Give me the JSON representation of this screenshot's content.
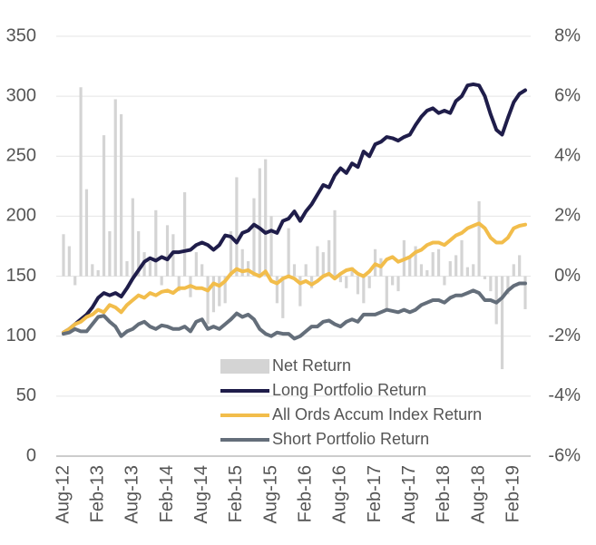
{
  "chart_data": {
    "type": "combo",
    "categories": [
      "Aug-12",
      null,
      null,
      null,
      null,
      null,
      "Feb-13",
      null,
      null,
      null,
      null,
      null,
      "Aug-13",
      null,
      null,
      null,
      null,
      null,
      "Feb-14",
      null,
      null,
      null,
      null,
      null,
      "Aug-14",
      null,
      null,
      null,
      null,
      null,
      "Feb-15",
      null,
      null,
      null,
      null,
      null,
      "Aug-15",
      null,
      null,
      null,
      null,
      null,
      "Feb-16",
      null,
      null,
      null,
      null,
      null,
      "Aug-16",
      null,
      null,
      null,
      null,
      null,
      "Feb-17",
      null,
      null,
      null,
      null,
      null,
      "Aug-17",
      null,
      null,
      null,
      null,
      null,
      "Feb-18",
      null,
      null,
      null,
      null,
      null,
      "Aug-18",
      null,
      null,
      null,
      null,
      null,
      "Feb-19",
      null,
      null
    ],
    "series": [
      {
        "name": "Net Return",
        "type": "bar",
        "axis": "y2",
        "color": "#d4d4d4",
        "values": [
          1.4,
          1.0,
          -0.3,
          6.3,
          2.9,
          0.4,
          0.2,
          4.7,
          1.5,
          5.9,
          5.4,
          0.5,
          2.6,
          1.5,
          0.8,
          0.5,
          2.2,
          -0.3,
          1.7,
          1.4,
          -0.5,
          2.8,
          -0.7,
          0.8,
          0.4,
          -1.6,
          -1.2,
          -1.0,
          -0.9,
          1.5,
          3.3,
          0.9,
          0.5,
          2.6,
          3.6,
          3.9,
          2.0,
          -0.9,
          -1.4,
          1.6,
          0.4,
          -1.0,
          0.4,
          -0.4,
          1.0,
          0.8,
          1.2,
          2.2,
          -0.2,
          -0.4,
          0.3,
          -0.6,
          -0.9,
          -0.4,
          0.9,
          0.6,
          -1.1,
          -0.3,
          -0.5,
          1.2,
          0.6,
          1.0,
          0.4,
          0.2,
          0.8,
          0.9,
          -0.3,
          0.5,
          0.7,
          1.2,
          0.3,
          0.4,
          2.5,
          -0.1,
          -0.5,
          -1.6,
          -3.1,
          -0.6,
          0.4,
          0.7,
          -1.1
        ]
      },
      {
        "name": "Long Portfolio Return",
        "type": "line",
        "color": "#1f1d4a",
        "values": [
          103,
          106,
          110,
          114,
          118,
          124,
          132,
          136,
          134,
          136,
          133,
          140,
          148,
          155,
          162,
          165,
          163,
          166,
          164,
          170,
          170,
          171,
          172,
          176,
          178,
          176,
          172,
          176,
          184,
          183,
          178,
          186,
          188,
          193,
          190,
          186,
          188,
          186,
          196,
          198,
          204,
          196,
          204,
          210,
          218,
          226,
          224,
          234,
          240,
          236,
          244,
          241,
          254,
          250,
          260,
          262,
          266,
          265,
          263,
          266,
          268,
          276,
          283,
          288,
          290,
          286,
          288,
          286,
          296,
          300,
          309,
          310,
          309,
          300,
          285,
          272,
          268,
          282,
          295,
          302,
          305
        ]
      },
      {
        "name": "All Ords Accum Index Return",
        "type": "line",
        "color": "#f2bd4b",
        "values": [
          103,
          106,
          110,
          112,
          116,
          118,
          122,
          120,
          126,
          124,
          120,
          126,
          130,
          134,
          132,
          136,
          134,
          137,
          138,
          136,
          140,
          140,
          142,
          140,
          140,
          138,
          144,
          142,
          146,
          152,
          156,
          154,
          155,
          152,
          150,
          154,
          146,
          144,
          148,
          150,
          148,
          144,
          146,
          143,
          146,
          150,
          152,
          148,
          152,
          155,
          156,
          152,
          150,
          154,
          160,
          158,
          164,
          166,
          162,
          164,
          166,
          170,
          172,
          176,
          178,
          178,
          176,
          180,
          184,
          186,
          190,
          192,
          194,
          190,
          182,
          178,
          178,
          182,
          190,
          192,
          193
        ]
      },
      {
        "name": "Short Portfolio  Return",
        "type": "line",
        "color": "#646e7a",
        "values": [
          102,
          103,
          106,
          104,
          104,
          110,
          116,
          117,
          112,
          108,
          100,
          104,
          106,
          110,
          112,
          108,
          106,
          109,
          108,
          106,
          106,
          108,
          104,
          112,
          114,
          106,
          108,
          106,
          110,
          114,
          119,
          116,
          118,
          114,
          106,
          102,
          100,
          103,
          102,
          102,
          98,
          100,
          104,
          108,
          108,
          112,
          113,
          110,
          108,
          112,
          114,
          112,
          118,
          118,
          118,
          120,
          122,
          121,
          120,
          122,
          120,
          122,
          126,
          128,
          130,
          130,
          128,
          132,
          134,
          134,
          136,
          138,
          136,
          130,
          130,
          128,
          132,
          138,
          142,
          144,
          144
        ]
      }
    ],
    "ylim": [
      0,
      350
    ],
    "yticks": [
      0,
      50,
      100,
      150,
      200,
      250,
      300,
      350
    ],
    "y2lim": [
      -6,
      8
    ],
    "y2ticks": [
      {
        "value": -6,
        "label": "-6%"
      },
      {
        "value": -4,
        "label": "-4%"
      },
      {
        "value": -2,
        "label": "-2%"
      },
      {
        "value": 0,
        "label": "0%"
      },
      {
        "value": 2,
        "label": "2%"
      },
      {
        "value": 4,
        "label": "4%"
      },
      {
        "value": 6,
        "label": "6%"
      },
      {
        "value": 8,
        "label": "8%"
      }
    ],
    "grid": true
  }
}
